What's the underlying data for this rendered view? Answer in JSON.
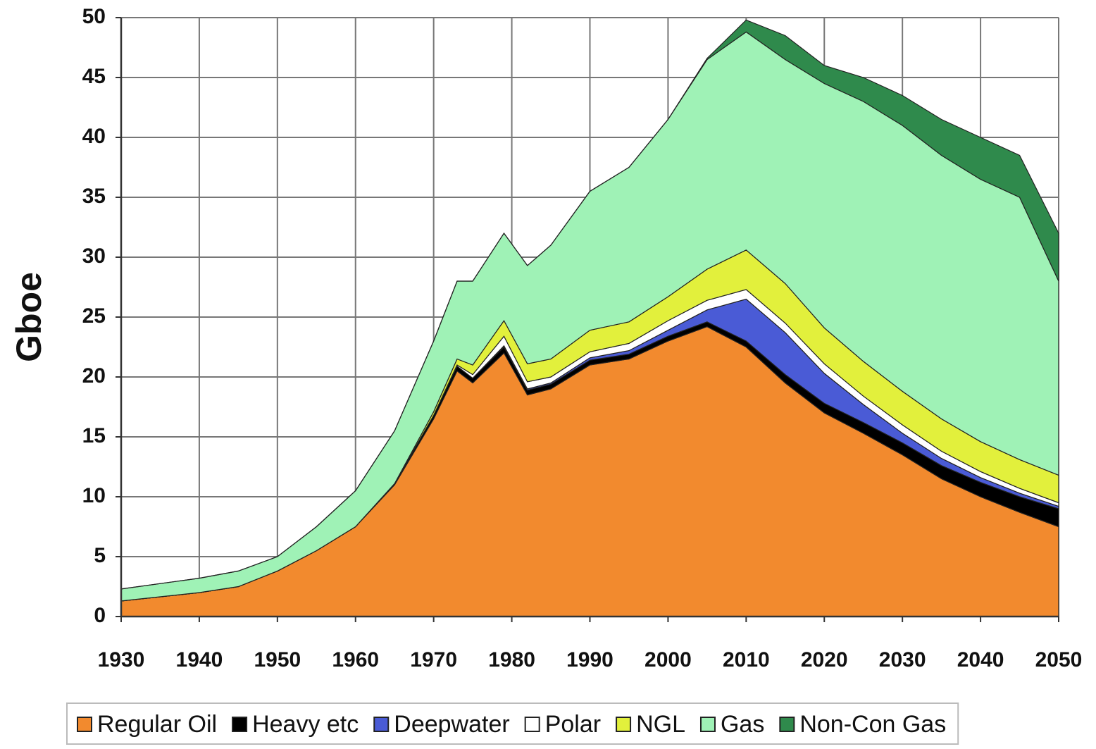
{
  "chart_data": {
    "type": "stacked_area",
    "ylabel": "Gboe",
    "x": [
      1930,
      1940,
      1945,
      1950,
      1955,
      1960,
      1965,
      1970,
      1973,
      1975,
      1979,
      1982,
      1985,
      1990,
      1995,
      2000,
      2005,
      2010,
      2015,
      2020,
      2025,
      2030,
      2035,
      2040,
      2045,
      2050
    ],
    "series": [
      {
        "name": "Regular Oil",
        "color": "#f28a2e",
        "values": [
          1.3,
          2.0,
          2.5,
          3.8,
          5.5,
          7.5,
          11,
          16.5,
          20.5,
          19.5,
          22,
          18.5,
          19,
          21,
          21.5,
          23,
          24.2,
          22.5,
          19.5,
          17,
          15.3,
          13.5,
          11.5,
          10,
          8.7,
          7.5
        ]
      },
      {
        "name": "Heavy etc",
        "color": "#000000",
        "values": [
          0,
          0,
          0,
          0,
          0,
          0,
          0.1,
          0.3,
          0.4,
          0.4,
          0.5,
          0.4,
          0.4,
          0.4,
          0.4,
          0.4,
          0.4,
          0.5,
          0.7,
          0.8,
          0.9,
          1,
          1.1,
          1.2,
          1.3,
          1.5
        ]
      },
      {
        "name": "Deepwater",
        "color": "#4a5bd6",
        "values": [
          0,
          0,
          0,
          0,
          0,
          0,
          0,
          0,
          0,
          0,
          0.1,
          0.1,
          0.1,
          0.2,
          0.3,
          0.5,
          1,
          3.5,
          3.5,
          2.5,
          1.5,
          0.8,
          0.6,
          0.4,
          0.3,
          0.2
        ]
      },
      {
        "name": "Polar",
        "color": "#ffffff",
        "values": [
          0,
          0,
          0,
          0,
          0,
          0,
          0,
          0,
          0.1,
          0.3,
          0.8,
          0.6,
          0.5,
          0.5,
          0.6,
          0.8,
          0.8,
          0.8,
          0.8,
          0.8,
          0.7,
          0.7,
          0.6,
          0.5,
          0.4,
          0.3
        ]
      },
      {
        "name": "NGL",
        "color": "#e2f03c",
        "values": [
          0,
          0,
          0,
          0,
          0,
          0,
          0,
          0.3,
          0.5,
          0.8,
          1.3,
          1.5,
          1.5,
          1.8,
          1.8,
          2,
          2.6,
          3.3,
          3.3,
          3,
          2.9,
          2.8,
          2.7,
          2.5,
          2.4,
          2.3
        ]
      },
      {
        "name": "Gas",
        "color": "#9ff2b6",
        "values": [
          1.0,
          1.2,
          1.3,
          1.2,
          2.0,
          3.0,
          4.4,
          5.9,
          6.5,
          7.0,
          7.3,
          8.2,
          9.5,
          11.6,
          12.9,
          14.8,
          17.5,
          18.2,
          18.7,
          20.4,
          21.7,
          22.2,
          22.0,
          21.9,
          21.9,
          16.2
        ]
      },
      {
        "name": "Non-Con Gas",
        "color": "#2f8a4c",
        "values": [
          0,
          0,
          0,
          0,
          0,
          0,
          0,
          0,
          0,
          0,
          0,
          0,
          0,
          0,
          0,
          0,
          0.1,
          1.0,
          2.0,
          1.5,
          2.0,
          2.5,
          3.0,
          3.5,
          3.5,
          4.0
        ]
      }
    ],
    "xlim": [
      1930,
      2050
    ],
    "xticks": [
      1930,
      1940,
      1950,
      1960,
      1970,
      1980,
      1990,
      2000,
      2010,
      2020,
      2030,
      2040,
      2050
    ],
    "ylim": [
      0,
      50
    ],
    "yticks": [
      0,
      5,
      10,
      15,
      20,
      25,
      30,
      35,
      40,
      45,
      50
    ],
    "grid": true,
    "legend": "bottom"
  }
}
